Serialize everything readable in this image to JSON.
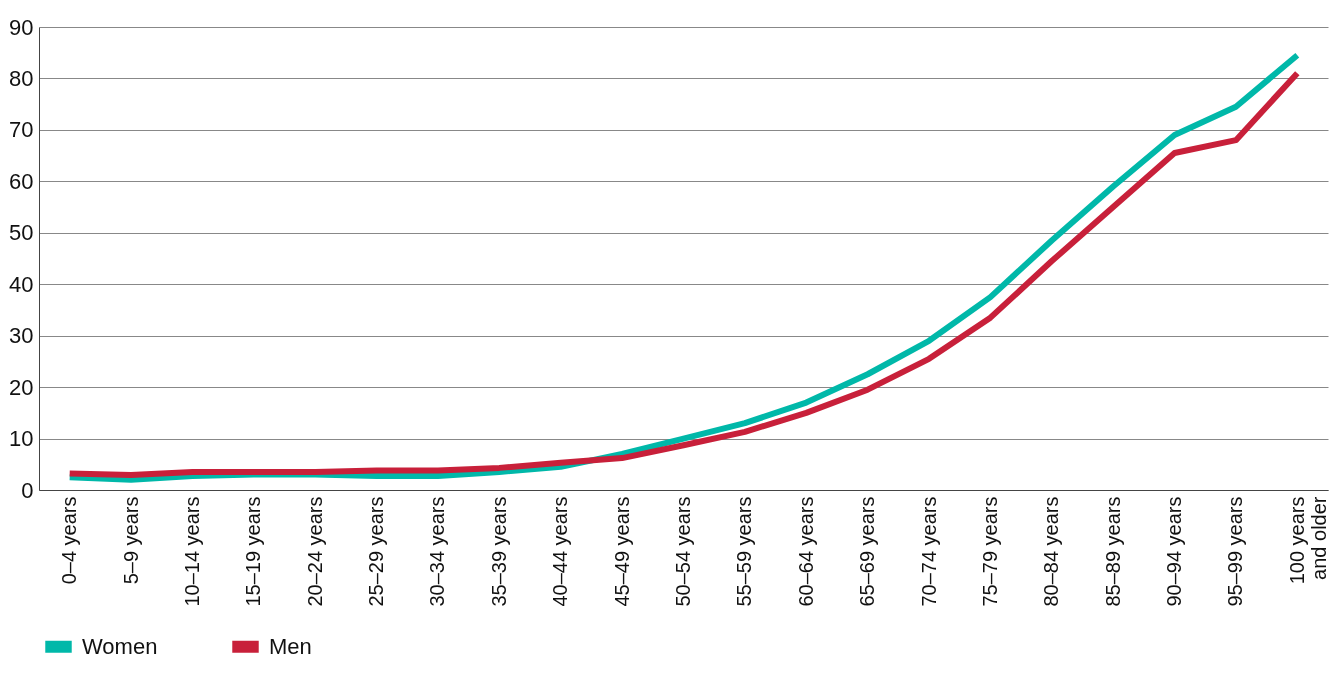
{
  "chart_data": {
    "type": "line",
    "categories": [
      "0–4 years",
      "5–9 years",
      "10–14 years",
      "15–19 years",
      "20–24 years",
      "25–29 years",
      "30–34 years",
      "35–39 years",
      "40–44 years",
      "45–49 years",
      "50–54 years",
      "55–59 years",
      "60–64 years",
      "65–69 years",
      "70–74 years",
      "75–79 years",
      "80–84 years",
      "85–89 years",
      "90–94 years",
      "95–99 years",
      "100 years and older"
    ],
    "series": [
      {
        "name": "Women",
        "color": "#00b8a9",
        "values": [
          2.5,
          2,
          2.7,
          3,
          3,
          2.7,
          2.7,
          3.5,
          4.5,
          7,
          10,
          13,
          17,
          22.5,
          29,
          37.5,
          48.5,
          59,
          69,
          74.5,
          84.5
        ]
      },
      {
        "name": "Men",
        "color": "#c8203a",
        "values": [
          3.2,
          2.9,
          3.5,
          3.5,
          3.5,
          3.8,
          3.8,
          4.3,
          5.3,
          6.2,
          8.7,
          11.3,
          15,
          19.5,
          25.5,
          33.5,
          44.5,
          55,
          65.5,
          68,
          81
        ]
      }
    ],
    "ylim": [
      0,
      90
    ],
    "yticks": [
      0,
      10,
      20,
      30,
      40,
      50,
      60,
      70,
      80,
      90
    ],
    "grid": "y",
    "legend": "bottom",
    "marker": "none",
    "line_style": "solid"
  }
}
